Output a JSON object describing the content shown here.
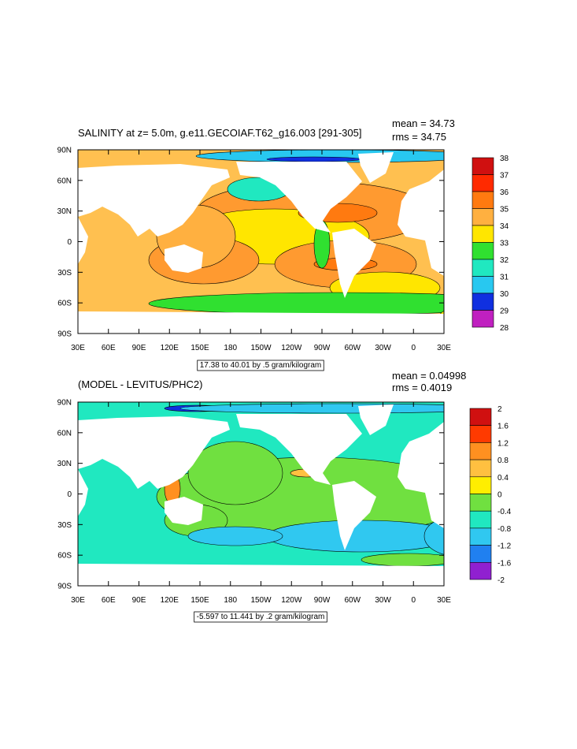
{
  "panels": [
    {
      "title": "SALINITY at z=   5.0m, g.e11.GECOIAF.T62_g16.003 [291-305]",
      "mean": "mean = 34.73",
      "rms": "rms = 34.75",
      "lat_ticks": [
        "90N",
        "60N",
        "30N",
        "0",
        "30S",
        "60S",
        "90S"
      ],
      "lon_ticks": [
        "30E",
        "60E",
        "90E",
        "120E",
        "150E",
        "180",
        "150W",
        "120W",
        "90W",
        "60W",
        "30W",
        "0",
        "30E"
      ],
      "contour_info": "17.38 to 40.01 by .5 gram/kilogram",
      "colorbar_labels": [
        "38",
        "37",
        "36",
        "35",
        "34",
        "33",
        "32",
        "31",
        "30",
        "29",
        "28"
      ],
      "colorbar_colors": [
        "#d01010",
        "#ff2a00",
        "#ff7a10",
        "#ffb040",
        "#ffe600",
        "#30e030",
        "#20e8c0",
        "#28c8f0",
        "#1030e0",
        "#c020c0"
      ]
    },
    {
      "title": "(MODEL - LEVITUS/PHC2)",
      "mean": "mean = 0.04998",
      "rms": "rms = 0.4019",
      "lat_ticks": [
        "90N",
        "60N",
        "30N",
        "0",
        "30S",
        "60S",
        "90S"
      ],
      "lon_ticks": [
        "30E",
        "60E",
        "90E",
        "120E",
        "150E",
        "180",
        "150W",
        "120W",
        "90W",
        "60W",
        "30W",
        "0",
        "30E"
      ],
      "contour_info": "-5.597 to 11.441 by .2 gram/kilogram",
      "colorbar_labels": [
        "2",
        "1.6",
        "1.2",
        "0.8",
        "0.4",
        "0",
        "-0.4",
        "-0.8",
        "-1.2",
        "-1.6",
        "-2"
      ],
      "colorbar_colors": [
        "#d01010",
        "#ff3a00",
        "#ff9020",
        "#ffc040",
        "#ffee00",
        "#70e040",
        "#20e8c0",
        "#30c8f0",
        "#2080f0",
        "#9020d0"
      ]
    }
  ]
}
